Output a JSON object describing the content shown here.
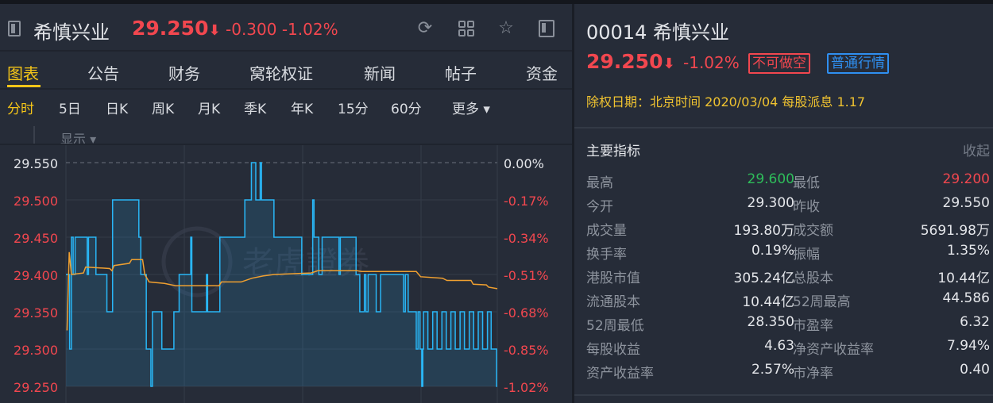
{
  "header": {
    "name": "希慎兴业",
    "price": "29.250",
    "arrow": "⬇",
    "change": "-0.300",
    "change_pct": "-1.02%",
    "icons": [
      "refresh-icon",
      "grid-icon",
      "star-icon",
      "panel-toggle-icon"
    ]
  },
  "tabs": [
    "图表",
    "公告",
    "财务",
    "窝轮权证",
    "新闻",
    "帖子",
    "资金"
  ],
  "subtabs": [
    "分时",
    "5日",
    "日K",
    "周K",
    "月K",
    "季K",
    "年K",
    "15分",
    "60分",
    "更多 ▾"
  ],
  "show_label": "显示 ▾",
  "watermark": "老虎證券",
  "colors": {
    "up": "#2ebd5a",
    "down": "#f2474f",
    "accent": "#f5c518",
    "price_line": "#29b6f6",
    "avg_line": "#f0a030",
    "badge_blue": "#2f8ff0"
  },
  "chart_data": {
    "type": "line",
    "ylim": [
      29.25,
      29.55
    ],
    "left_ticks": [
      "29.550",
      "29.500",
      "29.450",
      "29.400",
      "29.350",
      "29.300",
      "29.250"
    ],
    "right_ticks": [
      "0.00%",
      "-0.17%",
      "-0.34%",
      "-0.51%",
      "-0.68%",
      "-0.85%",
      "-1.02%"
    ],
    "prev_close": 29.55,
    "x_range": [
      0,
      197
    ],
    "series": [
      {
        "style": "step",
        "points": [
          [
            0,
            29.4
          ],
          [
            1.7,
            29.3
          ],
          [
            2.5,
            29.45
          ],
          [
            3.3,
            29.4
          ],
          [
            4.2,
            29.45
          ],
          [
            9.7,
            29.4
          ],
          [
            10.3,
            29.45
          ],
          [
            13.7,
            29.4
          ],
          [
            18.7,
            29.35
          ],
          [
            21.3,
            29.5
          ],
          [
            33.3,
            29.45
          ],
          [
            34.2,
            29.4
          ],
          [
            36.7,
            29.3
          ],
          [
            38.8,
            29.25
          ],
          [
            39.5,
            29.35
          ],
          [
            43.8,
            29.3
          ],
          [
            49.3,
            29.35
          ],
          [
            51.7,
            29.4
          ],
          [
            57,
            29.45
          ],
          [
            57.5,
            29.35
          ],
          [
            64.2,
            29.4
          ],
          [
            64.7,
            29.35
          ],
          [
            70.3,
            29.45
          ],
          [
            81.7,
            29.5
          ],
          [
            84.7,
            29.55
          ],
          [
            86.7,
            29.5
          ],
          [
            88.7,
            29.55
          ],
          [
            89.3,
            29.5
          ],
          [
            95,
            29.45
          ],
          [
            107.7,
            29.4
          ],
          [
            112.7,
            29.5
          ],
          [
            113.3,
            29.45
          ],
          [
            115.5,
            29.4
          ],
          [
            117,
            29.45
          ],
          [
            124.7,
            29.4
          ],
          [
            125.3,
            29.45
          ],
          [
            132.5,
            29.4
          ],
          [
            134.2,
            29.35
          ],
          [
            136.3,
            29.4
          ],
          [
            137,
            29.35
          ],
          [
            138,
            29.4
          ],
          [
            141.7,
            29.35
          ],
          [
            143.7,
            29.4
          ],
          [
            154.2,
            29.35
          ],
          [
            155,
            29.4
          ],
          [
            156.3,
            29.35
          ],
          [
            160,
            29.3
          ],
          [
            160.8,
            29.35
          ],
          [
            161.7,
            29.3
          ],
          [
            162.5,
            29.25
          ],
          [
            163,
            29.3
          ],
          [
            163.3,
            29.35
          ],
          [
            165.3,
            29.3
          ],
          [
            167.5,
            29.35
          ],
          [
            169.5,
            29.3
          ],
          [
            171.7,
            29.35
          ],
          [
            173.7,
            29.3
          ],
          [
            175.8,
            29.35
          ],
          [
            177.8,
            29.3
          ],
          [
            180,
            29.35
          ],
          [
            182,
            29.3
          ],
          [
            184.2,
            29.35
          ],
          [
            186.2,
            29.3
          ],
          [
            188.3,
            29.35
          ],
          [
            190.3,
            29.3
          ],
          [
            192.5,
            29.35
          ],
          [
            194.2,
            29.3
          ],
          [
            196.7,
            29.25
          ],
          [
            197,
            29.25
          ]
        ]
      },
      {
        "style": "line",
        "points": [
          [
            0.5,
            29.325
          ],
          [
            1.5,
            29.43
          ],
          [
            2.5,
            29.4
          ],
          [
            8,
            29.402
          ],
          [
            9,
            29.41
          ],
          [
            20,
            29.408
          ],
          [
            21,
            29.405
          ],
          [
            22,
            29.412
          ],
          [
            29,
            29.415
          ],
          [
            30,
            29.42
          ],
          [
            35,
            29.42
          ],
          [
            36,
            29.4
          ],
          [
            38,
            29.39
          ],
          [
            45,
            29.388
          ],
          [
            50,
            29.385
          ],
          [
            70,
            29.385
          ],
          [
            71,
            29.39
          ],
          [
            80,
            29.39
          ],
          [
            85,
            29.395
          ],
          [
            90,
            29.398
          ],
          [
            95,
            29.4
          ],
          [
            112,
            29.402
          ],
          [
            115,
            29.405
          ],
          [
            133,
            29.405
          ],
          [
            135,
            29.404
          ],
          [
            160,
            29.404
          ],
          [
            162,
            29.397
          ],
          [
            172,
            29.395
          ],
          [
            174,
            29.392
          ],
          [
            185,
            29.392
          ],
          [
            186,
            29.387
          ],
          [
            192,
            29.386
          ],
          [
            193,
            29.383
          ],
          [
            197,
            29.381
          ]
        ]
      }
    ]
  },
  "right": {
    "title": "00014 希慎兴业",
    "price": "29.250",
    "arrow": "⬇",
    "change_pct": "-1.02%",
    "badge_short": "不可做空",
    "badge_quote": "普通行情",
    "dividend": "除权日期：北京时间 2020/03/04 每股派息 1.17",
    "section": "主要指标",
    "collapse": "收起",
    "metrics": [
      [
        "最高",
        "29.600",
        "最低",
        "29.200"
      ],
      [
        "今开",
        "29.300",
        "昨收",
        "29.550"
      ],
      [
        "成交量",
        "193.80万",
        "成交额",
        "5691.98万"
      ],
      [
        "换手率",
        "0.19%",
        "振幅",
        "1.35%"
      ],
      [
        "港股市值",
        "305.24亿",
        "总股本",
        "10.44亿"
      ],
      [
        "流通股本",
        "10.44亿",
        "52周最高",
        "44.586"
      ],
      [
        "52周最低",
        "28.350",
        "市盈率",
        "6.32"
      ],
      [
        "每股收益",
        "4.63",
        "净资产收益率",
        "7.94%"
      ],
      [
        "资产收益率",
        "2.57%",
        "市净率",
        "0.40"
      ]
    ]
  }
}
